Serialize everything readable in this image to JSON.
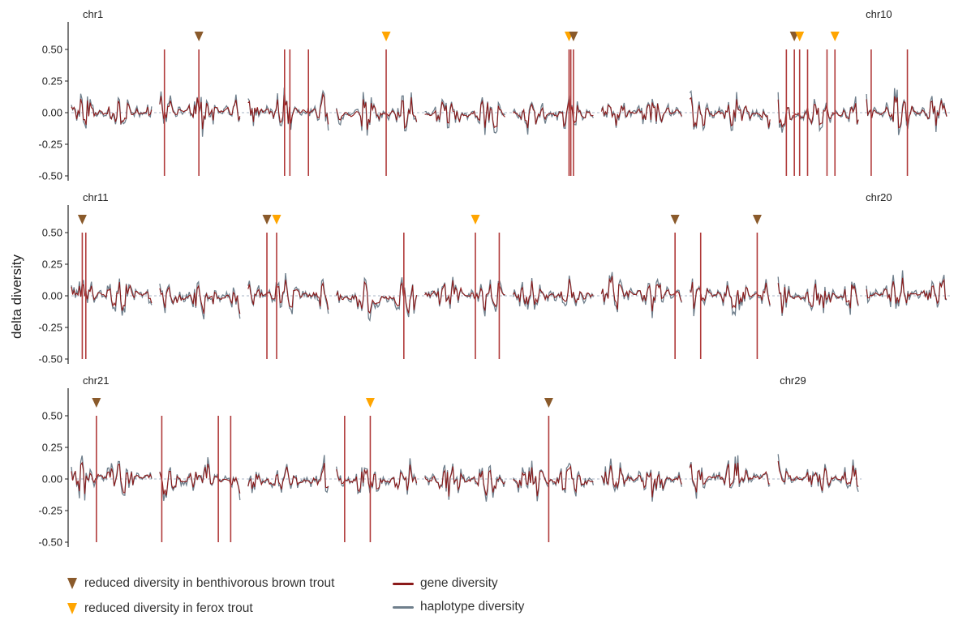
{
  "chart_data": {
    "type": "line",
    "ylabel": "delta diversity",
    "ylim": [
      -0.5,
      0.5
    ],
    "yticks": [
      0.5,
      0.25,
      0.0,
      -0.25,
      -0.5
    ],
    "ytick_labels": [
      "0.50",
      "0.25",
      "0.00",
      "-0.25",
      "-0.50"
    ],
    "series": [
      {
        "name": "gene diversity",
        "color": "#8b1a1a"
      },
      {
        "name": "haplotype diversity",
        "color": "#6f7f8c"
      }
    ],
    "legend": {
      "placement": "bottom-left",
      "markers": [
        {
          "label": "reduced diversity in benthivorous brown trout",
          "color": "#8a5a2b"
        },
        {
          "label": "reduced diversity in ferox trout",
          "color": "#ffa500"
        }
      ],
      "lines": [
        {
          "label": "gene diversity",
          "color": "#8b1a1a"
        },
        {
          "label": "haplotype diversity",
          "color": "#6f7f8c"
        }
      ]
    },
    "colors": {
      "benthivorous": "#8a5a2b",
      "ferox": "#ffa500",
      "vline": "#b03a3a",
      "zero": "#a8b4c4"
    },
    "rows": [
      {
        "first_label": "chr1",
        "last_label": "chr10",
        "segments": 10,
        "vlines": [
          1.09,
          1.48,
          2.45,
          2.51,
          2.72,
          3.6,
          5.67,
          5.69,
          5.72,
          8.13,
          8.22,
          8.28,
          8.37,
          8.59,
          8.68,
          9.09,
          9.5
        ],
        "markers": [
          {
            "pos": 1.48,
            "kind": "benthivorous"
          },
          {
            "pos": 3.6,
            "kind": "ferox"
          },
          {
            "pos": 5.67,
            "kind": "ferox"
          },
          {
            "pos": 5.72,
            "kind": "benthivorous"
          },
          {
            "pos": 8.22,
            "kind": "benthivorous"
          },
          {
            "pos": 8.28,
            "kind": "ferox"
          },
          {
            "pos": 8.68,
            "kind": "ferox"
          }
        ]
      },
      {
        "first_label": "chr11",
        "last_label": "chr20",
        "segments": 10,
        "vlines": [
          0.16,
          0.2,
          2.25,
          2.36,
          3.8,
          4.61,
          4.88,
          6.87,
          7.16,
          7.8
        ],
        "markers": [
          {
            "pos": 0.16,
            "kind": "benthivorous"
          },
          {
            "pos": 2.25,
            "kind": "benthivorous"
          },
          {
            "pos": 2.36,
            "kind": "ferox"
          },
          {
            "pos": 4.61,
            "kind": "ferox"
          },
          {
            "pos": 6.87,
            "kind": "benthivorous"
          },
          {
            "pos": 7.8,
            "kind": "benthivorous"
          }
        ]
      },
      {
        "first_label": "chr21",
        "last_label": "chr29",
        "segments": 9,
        "vlines": [
          0.32,
          1.06,
          1.7,
          1.84,
          3.13,
          3.42,
          5.44
        ],
        "markers": [
          {
            "pos": 0.32,
            "kind": "benthivorous"
          },
          {
            "pos": 3.42,
            "kind": "ferox"
          },
          {
            "pos": 5.44,
            "kind": "benthivorous"
          }
        ]
      }
    ]
  }
}
